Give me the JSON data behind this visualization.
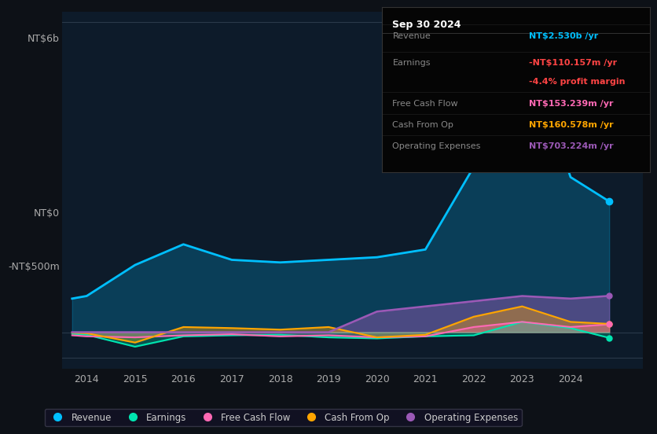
{
  "bg_color": "#0d1117",
  "plot_bg_color": "#0d1b2a",
  "title_label": "NT$6b",
  "ylabel_0": "NT$0",
  "ylabel_neg": "-NT$500m",
  "x_years": [
    2013.7,
    2014,
    2015,
    2016,
    2017,
    2018,
    2019,
    2020,
    2021,
    2022,
    2023,
    2024,
    2024.8
  ],
  "revenue": [
    650,
    700,
    1300,
    1700,
    1400,
    1350,
    1400,
    1450,
    1600,
    3200,
    5800,
    3000,
    2530
  ],
  "earnings": [
    -30,
    -50,
    -280,
    -80,
    -60,
    -50,
    -100,
    -120,
    -80,
    -60,
    200,
    80,
    -110
  ],
  "free_cash_flow": [
    -60,
    -80,
    -100,
    -60,
    -40,
    -80,
    -60,
    -100,
    -80,
    100,
    200,
    100,
    153
  ],
  "cash_from_op": [
    -10,
    -20,
    -200,
    100,
    80,
    50,
    100,
    -100,
    -50,
    300,
    500,
    200,
    161
  ],
  "operating_expenses": [
    0,
    0,
    0,
    0,
    0,
    0,
    0,
    400,
    500,
    600,
    700,
    650,
    703
  ],
  "revenue_color": "#00bfff",
  "earnings_color": "#00e5b0",
  "fcf_color": "#ff69b4",
  "cashop_color": "#ffa500",
  "opex_color": "#9b59b6",
  "legend_items": [
    "Revenue",
    "Earnings",
    "Free Cash Flow",
    "Cash From Op",
    "Operating Expenses"
  ],
  "tooltip_title": "Sep 30 2024",
  "tooltip_rows": [
    {
      "label": "Revenue",
      "value": "NT$2.530b /yr",
      "value_color": "#00bfff",
      "extra": null,
      "extra_color": null
    },
    {
      "label": "Earnings",
      "value": "-NT$110.157m /yr",
      "value_color": "#ff4444",
      "extra": "-4.4% profit margin",
      "extra_color": "#ff4444"
    },
    {
      "label": "Free Cash Flow",
      "value": "NT$153.239m /yr",
      "value_color": "#ff69b4",
      "extra": null,
      "extra_color": null
    },
    {
      "label": "Cash From Op",
      "value": "NT$160.578m /yr",
      "value_color": "#ffa500",
      "extra": null,
      "extra_color": null
    },
    {
      "label": "Operating Expenses",
      "value": "NT$703.224m /yr",
      "value_color": "#9b59b6",
      "extra": null,
      "extra_color": null
    }
  ],
  "ylim_min": -700,
  "ylim_max": 6200,
  "xlim_min": 2013.5,
  "xlim_max": 2025.5
}
